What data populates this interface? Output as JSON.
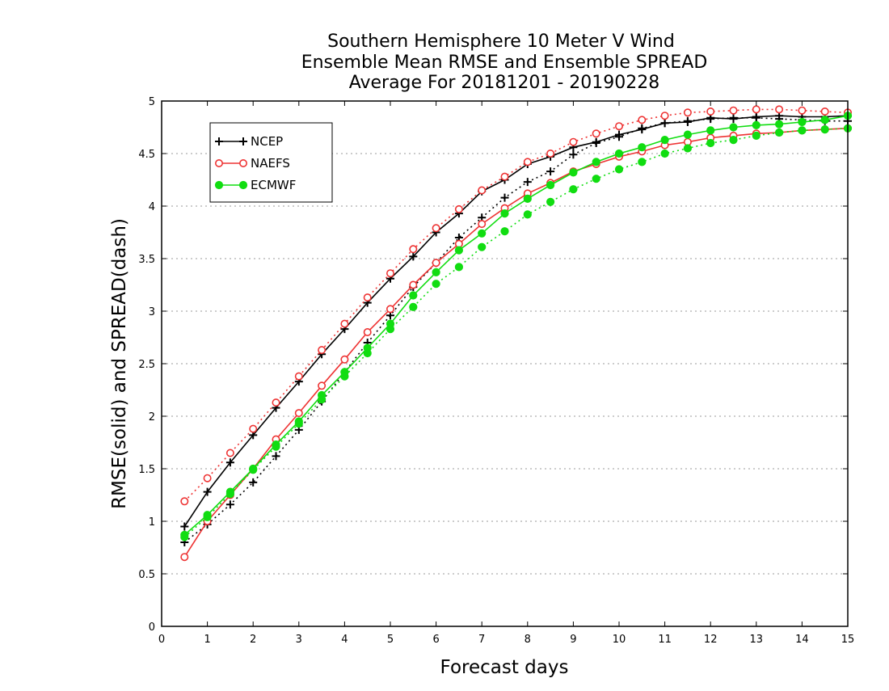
{
  "chart_data": {
    "type": "line",
    "title": [
      "Southern Hemisphere 10 Meter V Wind",
      "Ensemble Mean RMSE and Ensemble SPREAD",
      "Average For 20181201 - 20190228"
    ],
    "xlabel": "Forecast days",
    "ylabel": "RMSE(solid) and SPREAD(dash)",
    "xlim": [
      0,
      15
    ],
    "ylim": [
      0,
      5
    ],
    "xticks": [
      0,
      1,
      2,
      3,
      4,
      5,
      6,
      7,
      8,
      9,
      10,
      11,
      12,
      13,
      14,
      15
    ],
    "yticks": [
      0,
      0.5,
      1,
      1.5,
      2,
      2.5,
      3,
      3.5,
      4,
      4.5,
      5
    ],
    "ytick_labels": [
      "0",
      "0.5",
      "1",
      "1.5",
      "2",
      "2.5",
      "3",
      "3.5",
      "4",
      "4.5",
      "5"
    ],
    "grid": "horizontal dotted",
    "legend_position": "top-left",
    "x": [
      0.5,
      1,
      1.5,
      2,
      2.5,
      3,
      3.5,
      4,
      4.5,
      5,
      5.5,
      6,
      6.5,
      7,
      7.5,
      8,
      8.5,
      9,
      9.5,
      10,
      10.5,
      11,
      11.5,
      12,
      12.5,
      13,
      13.5,
      14,
      14.5,
      15
    ],
    "series": [
      {
        "name": "NCEP",
        "kind": "rmse",
        "color": "#000000",
        "marker": "plus",
        "values": [
          0.95,
          1.28,
          1.56,
          1.82,
          2.08,
          2.33,
          2.59,
          2.83,
          3.08,
          3.31,
          3.52,
          3.75,
          3.93,
          4.14,
          4.25,
          4.4,
          4.47,
          4.56,
          4.61,
          4.68,
          4.73,
          4.79,
          4.8,
          4.84,
          4.83,
          4.85,
          4.86,
          4.85,
          4.85,
          4.86
        ]
      },
      {
        "name": "NCEP",
        "kind": "spread",
        "color": "#000000",
        "marker": "plus",
        "values": [
          0.8,
          0.97,
          1.16,
          1.37,
          1.62,
          1.87,
          2.14,
          2.42,
          2.7,
          2.96,
          3.23,
          3.46,
          3.7,
          3.89,
          4.08,
          4.23,
          4.33,
          4.49,
          4.6,
          4.66,
          4.74,
          4.79,
          4.81,
          4.83,
          4.84,
          4.84,
          4.83,
          4.82,
          4.81,
          4.81
        ]
      },
      {
        "name": "NAEFS",
        "kind": "rmse",
        "color": "#ee3333",
        "marker": "open-circle",
        "values": [
          0.66,
          1.0,
          1.25,
          1.5,
          1.78,
          2.03,
          2.29,
          2.54,
          2.8,
          3.02,
          3.25,
          3.46,
          3.64,
          3.83,
          3.98,
          4.12,
          4.22,
          4.33,
          4.4,
          4.47,
          4.52,
          4.58,
          4.61,
          4.65,
          4.67,
          4.69,
          4.7,
          4.72,
          4.73,
          4.74
        ]
      },
      {
        "name": "NAEFS",
        "kind": "spread",
        "color": "#ee3333",
        "marker": "open-circle",
        "values": [
          1.19,
          1.41,
          1.65,
          1.88,
          2.13,
          2.38,
          2.63,
          2.88,
          3.13,
          3.36,
          3.59,
          3.79,
          3.97,
          4.15,
          4.28,
          4.42,
          4.5,
          4.61,
          4.69,
          4.76,
          4.82,
          4.86,
          4.89,
          4.9,
          4.91,
          4.92,
          4.92,
          4.91,
          4.9,
          4.89
        ]
      },
      {
        "name": "ECMWF",
        "kind": "rmse",
        "color": "#11dd11",
        "marker": "filled-circle",
        "values": [
          0.87,
          1.06,
          1.28,
          1.5,
          1.73,
          1.95,
          2.2,
          2.42,
          2.65,
          2.88,
          3.15,
          3.37,
          3.58,
          3.74,
          3.93,
          4.07,
          4.2,
          4.32,
          4.42,
          4.5,
          4.56,
          4.63,
          4.68,
          4.72,
          4.75,
          4.77,
          4.78,
          4.8,
          4.82,
          4.86
        ]
      },
      {
        "name": "ECMWF",
        "kind": "spread",
        "color": "#11dd11",
        "marker": "filled-circle",
        "values": [
          0.85,
          1.04,
          1.26,
          1.49,
          1.71,
          1.93,
          2.16,
          2.38,
          2.6,
          2.83,
          3.04,
          3.26,
          3.42,
          3.61,
          3.76,
          3.92,
          4.04,
          4.16,
          4.26,
          4.35,
          4.42,
          4.5,
          4.55,
          4.6,
          4.63,
          4.67,
          4.7,
          4.72,
          4.73,
          4.74
        ]
      }
    ],
    "legend": [
      {
        "name": "NCEP",
        "color": "#000000",
        "marker": "plus"
      },
      {
        "name": "NAEFS",
        "color": "#ee3333",
        "marker": "open-circle"
      },
      {
        "name": "ECMWF",
        "color": "#11dd11",
        "marker": "filled-circle"
      }
    ]
  }
}
